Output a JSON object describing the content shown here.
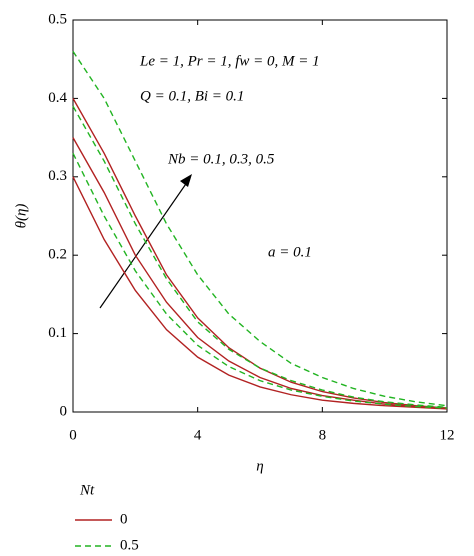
{
  "chart_data": {
    "type": "line",
    "xlabel": "η",
    "ylabel": "θ(η)",
    "x": [
      0,
      1,
      2,
      3,
      4,
      5,
      6,
      7,
      8,
      9,
      10,
      11,
      12
    ],
    "xlim": [
      0,
      12
    ],
    "xticks": [
      0,
      4,
      8,
      12
    ],
    "ylim": [
      0,
      0.5
    ],
    "yticks": [
      0,
      0.1,
      0.2,
      0.3,
      0.4,
      0.5
    ],
    "series": [
      {
        "color": "#b22222",
        "dashed": false,
        "values": [
          0.3,
          0.22,
          0.155,
          0.105,
          0.07,
          0.047,
          0.032,
          0.022,
          0.015,
          0.011,
          0.008,
          0.006,
          0.004
        ]
      },
      {
        "color": "#b22222",
        "dashed": false,
        "values": [
          0.35,
          0.28,
          0.2,
          0.14,
          0.095,
          0.065,
          0.044,
          0.03,
          0.021,
          0.015,
          0.01,
          0.007,
          0.005
        ]
      },
      {
        "color": "#b22222",
        "dashed": false,
        "values": [
          0.4,
          0.33,
          0.25,
          0.175,
          0.12,
          0.082,
          0.056,
          0.038,
          0.026,
          0.018,
          0.012,
          0.008,
          0.005
        ]
      },
      {
        "color": "#22b422",
        "dashed": true,
        "values": [
          0.33,
          0.25,
          0.18,
          0.125,
          0.085,
          0.058,
          0.04,
          0.028,
          0.02,
          0.014,
          0.01,
          0.007,
          0.005
        ]
      },
      {
        "color": "#22b422",
        "dashed": true,
        "values": [
          0.39,
          0.32,
          0.24,
          0.17,
          0.115,
          0.08,
          0.056,
          0.04,
          0.028,
          0.019,
          0.013,
          0.009,
          0.006
        ]
      },
      {
        "color": "#22b422",
        "dashed": true,
        "values": [
          0.46,
          0.4,
          0.32,
          0.24,
          0.175,
          0.125,
          0.09,
          0.062,
          0.044,
          0.03,
          0.02,
          0.013,
          0.008
        ]
      }
    ],
    "annotations": [
      "Le = 1, Pr = 1, fw = 0, M = 1",
      "Q = 0.1, Bi = 0.1",
      "Nb = 0.1, 0.3, 0.5",
      "a = 0.1"
    ],
    "legend": {
      "title": "Nt",
      "entries": [
        {
          "label": "0",
          "color": "#b22222",
          "dashed": false
        },
        {
          "label": "0.5",
          "color": "#22b422",
          "dashed": true
        }
      ]
    }
  }
}
